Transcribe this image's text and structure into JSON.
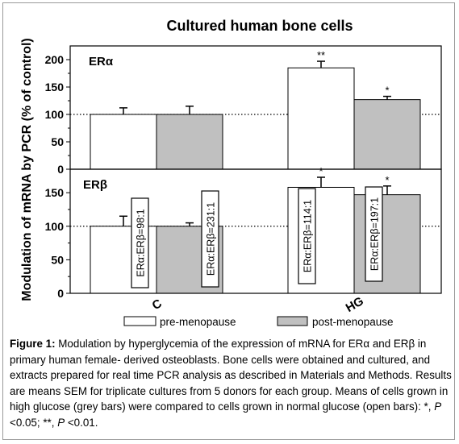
{
  "chart_data": {
    "type": "bar",
    "title": "Cultured human  bone cells",
    "ylabel": "Modulation of mRNA by PCR (% of control)",
    "categories": [
      "C",
      "HG"
    ],
    "legend": {
      "placement": "bottom",
      "entries": [
        {
          "name": "pre-menopause",
          "color": "#ffffff"
        },
        {
          "name": "post-menopause",
          "color": "#c0c0c0"
        }
      ]
    },
    "reference_line": 100,
    "panels": [
      {
        "label": "ERα",
        "ylim": [
          0,
          225
        ],
        "yticks": [
          "0",
          "50",
          "100",
          "150",
          "200"
        ],
        "series": [
          {
            "name": "pre-menopause",
            "values": [
              100,
              185
            ],
            "errors": [
              12,
              12
            ],
            "marks": [
              "",
              "**"
            ]
          },
          {
            "name": "post-menopause",
            "values": [
              100,
              127
            ],
            "errors": [
              15,
              6
            ],
            "marks": [
              "",
              "*"
            ]
          }
        ],
        "annotations": []
      },
      {
        "label": "ERβ",
        "ylim": [
          0,
          185
        ],
        "yticks": [
          "0",
          "50",
          "100",
          "150"
        ],
        "series": [
          {
            "name": "pre-menopause",
            "values": [
              100,
              158
            ],
            "errors": [
              15,
              15
            ],
            "marks": [
              "",
              "*"
            ]
          },
          {
            "name": "post-menopause",
            "values": [
              100,
              147
            ],
            "errors": [
              5,
              13
            ],
            "marks": [
              "",
              "*"
            ]
          }
        ],
        "annotations": [
          "ERα:ERβ=98:1",
          "ERα:ERβ=231:1",
          "ERα:ERβ=114:1",
          "ERα:ERβ=197:1"
        ]
      }
    ]
  },
  "caption": {
    "label": "Figure 1:",
    "text": " Modulation by hyperglycemia of the expression of mRNA for ERα and ERβ in primary human female- derived osteoblasts. Bone cells were obtained and cultured, and extracts prepared for real time PCR analysis as described in Materials and Methods. Results are means SEM for triplicate cultures from 5 donors for each group. Means of cells grown in high glucose (grey bars) were compared to cells grown in normal glucose (open bars): *, ",
    "p1": "P",
    "t1": " <0.05; **, ",
    "p2": "P",
    "t2": " <0.01."
  }
}
